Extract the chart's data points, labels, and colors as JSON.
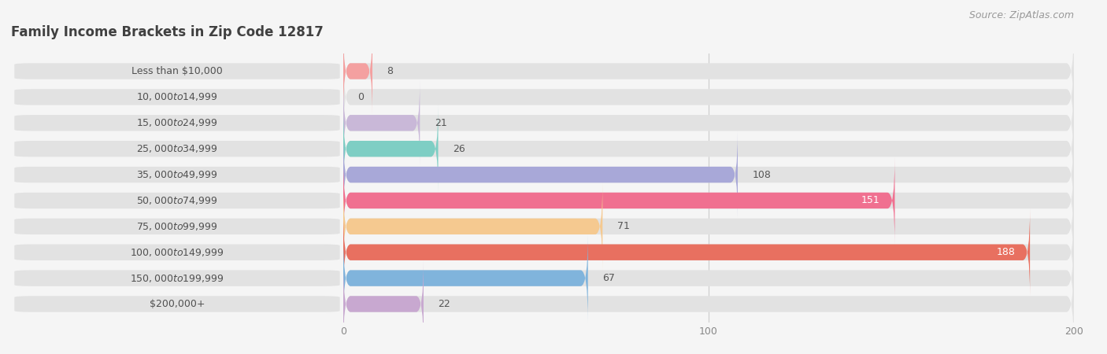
{
  "title": "Family Income Brackets in Zip Code 12817",
  "source": "Source: ZipAtlas.com",
  "categories": [
    "Less than $10,000",
    "$10,000 to $14,999",
    "$15,000 to $24,999",
    "$25,000 to $34,999",
    "$35,000 to $49,999",
    "$50,000 to $74,999",
    "$75,000 to $99,999",
    "$100,000 to $149,999",
    "$150,000 to $199,999",
    "$200,000+"
  ],
  "values": [
    8,
    0,
    21,
    26,
    108,
    151,
    71,
    188,
    67,
    22
  ],
  "bar_colors": [
    "#F4A0A0",
    "#A8C4E0",
    "#C9B8D8",
    "#7ECEC4",
    "#A8A8D8",
    "#F07090",
    "#F5C990",
    "#E87060",
    "#80B4DC",
    "#C8A8D0"
  ],
  "xlim": [
    0,
    200
  ],
  "xticks": [
    0,
    100,
    200
  ],
  "background_color": "#f5f5f5",
  "bar_background_color": "#e2e2e2",
  "title_fontsize": 12,
  "label_fontsize": 9,
  "value_fontsize": 9,
  "source_fontsize": 9,
  "title_color": "#404040",
  "label_color": "#505050",
  "value_color_dark": "#555555",
  "value_color_light": "#ffffff",
  "tick_color": "#888888",
  "grid_color": "#cccccc"
}
